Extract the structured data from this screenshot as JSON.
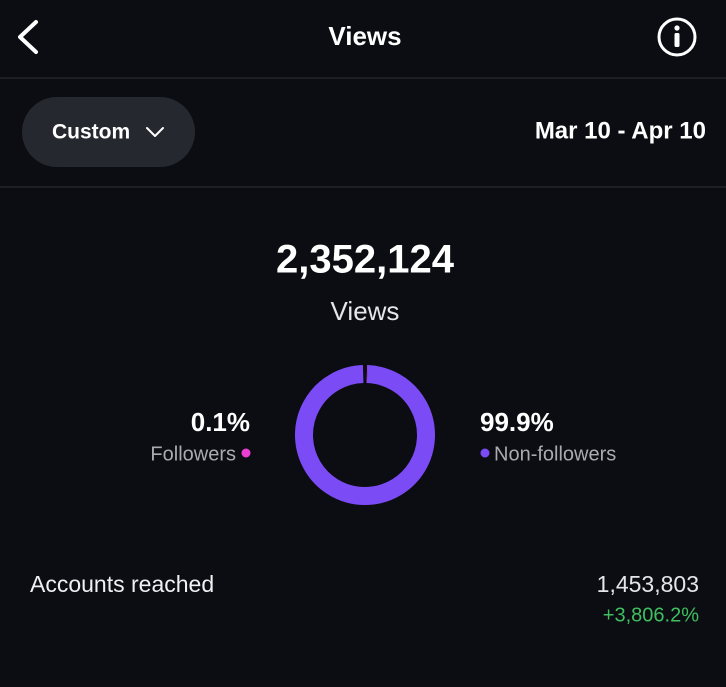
{
  "header": {
    "title": "Views"
  },
  "filter": {
    "range": "Custom",
    "dates": "Mar 10 - Apr 10"
  },
  "summary": {
    "total": "2,352,124",
    "label": "Views"
  },
  "chart_data": {
    "type": "pie",
    "categories": [
      "Followers",
      "Non-followers"
    ],
    "values": [
      0.1,
      99.9
    ],
    "value_labels": [
      "0.1%",
      "99.9%"
    ],
    "colors": [
      "#e93fd2",
      "#7b4cf6"
    ]
  },
  "accounts_reached": {
    "label": "Accounts reached",
    "value": "1,453,803",
    "change": "+3,806.2%"
  }
}
